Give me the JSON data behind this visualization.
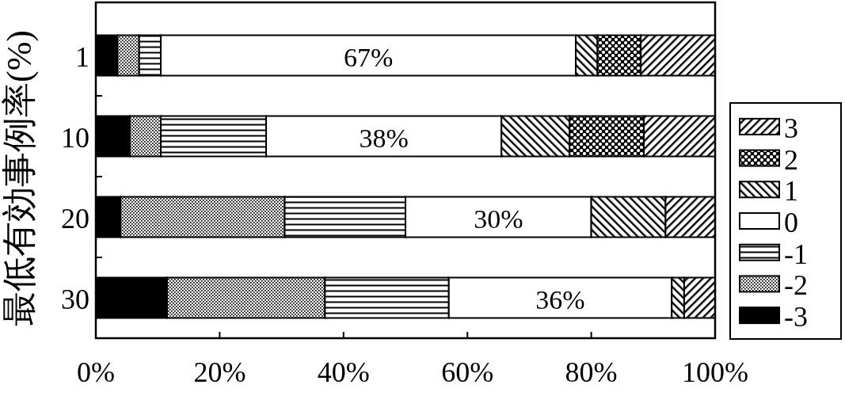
{
  "chart_data": {
    "type": "bar",
    "orientation": "horizontal",
    "stacked": true,
    "ylabel": "最低有効事例率(%)",
    "categories": [
      "1",
      "10",
      "20",
      "30"
    ],
    "series": [
      {
        "name": "-3",
        "color": "#000000",
        "values": [
          3.5,
          5.5,
          4,
          11.5
        ]
      },
      {
        "name": "-2",
        "color": "#000000",
        "values": [
          3.5,
          5,
          26.5,
          25.5
        ]
      },
      {
        "name": "-1",
        "color": "#000000",
        "values": [
          3.5,
          17,
          19.5,
          20
        ]
      },
      {
        "name": "0",
        "color": "#ffffff",
        "values": [
          67,
          38,
          30,
          36
        ],
        "value_labels": [
          "67%",
          "38%",
          "30%",
          "36%"
        ]
      },
      {
        "name": "1",
        "color": "#000000",
        "values": [
          3.5,
          11,
          12,
          2
        ]
      },
      {
        "name": "2",
        "color": "#000000",
        "values": [
          7,
          12,
          0,
          0
        ]
      },
      {
        "name": "3",
        "color": "#000000",
        "values": [
          12,
          11.5,
          8,
          5
        ]
      }
    ],
    "xlim": [
      0,
      100
    ],
    "xticks": [
      {
        "value": 0,
        "label": "0%"
      },
      {
        "value": 20,
        "label": "20%"
      },
      {
        "value": 40,
        "label": "40%"
      },
      {
        "value": 60,
        "label": "60%"
      },
      {
        "value": 80,
        "label": "80%"
      },
      {
        "value": 100,
        "label": "100%"
      }
    ],
    "legend": "right"
  }
}
